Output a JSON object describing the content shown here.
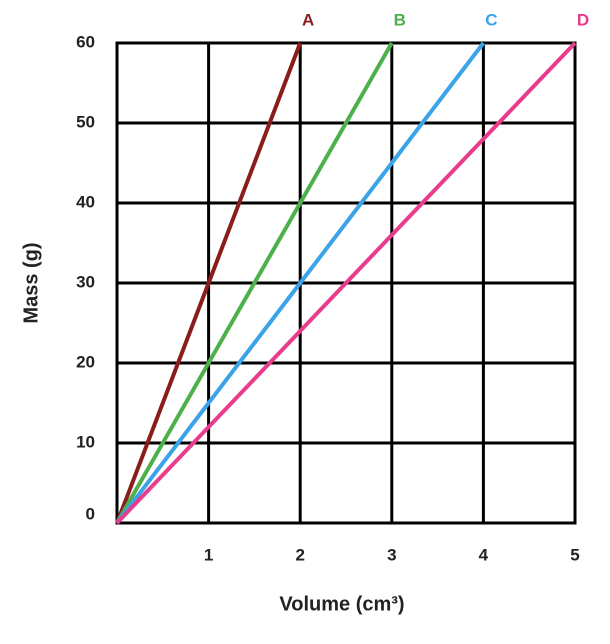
{
  "chart_data": {
    "type": "line",
    "x_label": "Volume (cm³)",
    "y_label": "Mass (g)",
    "x": [
      0,
      1,
      2,
      3,
      4,
      5
    ],
    "series": [
      {
        "name": "A",
        "color": "#8b1c1c",
        "values": [
          0,
          30,
          60,
          null,
          null,
          null
        ]
      },
      {
        "name": "B",
        "color": "#4db04a",
        "values": [
          0,
          20,
          40,
          60,
          null,
          null
        ]
      },
      {
        "name": "C",
        "color": "#3ba3ea",
        "values": [
          0,
          15,
          30,
          45,
          60,
          null
        ]
      },
      {
        "name": "D",
        "color": "#e83c8c",
        "values": [
          0,
          12,
          24,
          36,
          48,
          60
        ]
      }
    ],
    "xlim": [
      0,
      5
    ],
    "ylim": [
      0,
      60
    ],
    "xticks": [
      1,
      2,
      3,
      4,
      5
    ],
    "yticks": [
      0,
      10,
      20,
      30,
      40,
      50,
      60
    ],
    "grid": true
  }
}
